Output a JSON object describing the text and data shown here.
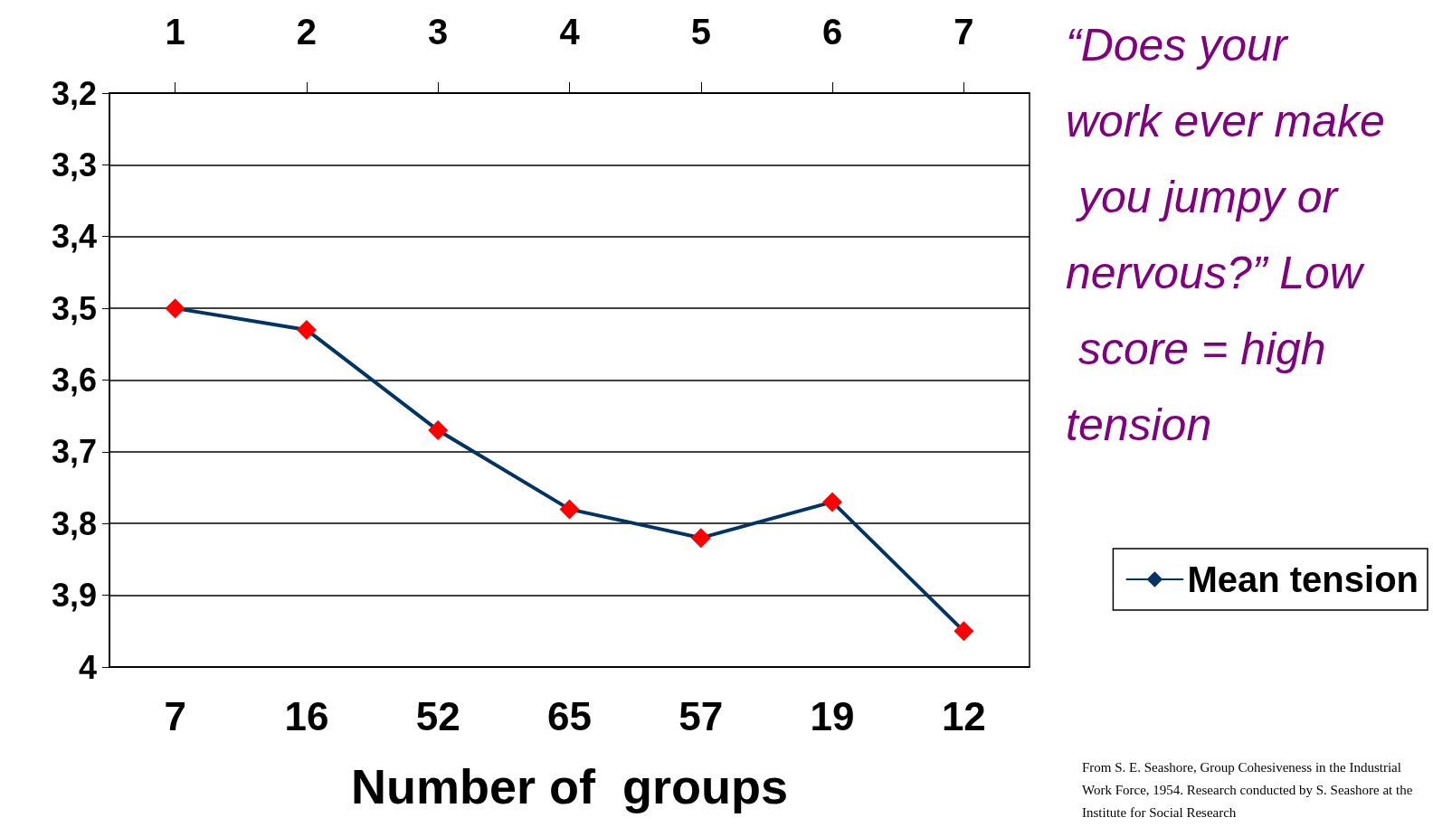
{
  "chart_data": {
    "type": "line",
    "categories": [
      "7",
      "16",
      "52",
      "65",
      "57",
      "19",
      "12"
    ],
    "xlabel": "Number of  groups",
    "x2lim": [
      0.5,
      7.5
    ],
    "x2ticks": [
      1,
      2,
      3,
      4,
      5,
      6,
      7
    ],
    "ylim": [
      4,
      3.2
    ],
    "yticks": [
      {
        "value": 3.2,
        "label": "3,2"
      },
      {
        "value": 3.3,
        "label": "3,3"
      },
      {
        "value": 3.4,
        "label": "3,4"
      },
      {
        "value": 3.5,
        "label": "3,5"
      },
      {
        "value": 3.6,
        "label": "3,6"
      },
      {
        "value": 3.7,
        "label": "3,7"
      },
      {
        "value": 3.8,
        "label": "3,8"
      },
      {
        "value": 3.9,
        "label": "3,9"
      },
      4
    ],
    "series": [
      {
        "name": "Mean tension",
        "color": "#003366",
        "colors": [
          "#ff0000",
          "#ff0000",
          "#ff0000",
          "#ff0000",
          "#ff0000",
          "#ff0000",
          "#ff0000"
        ],
        "values": [
          3.5,
          3.53,
          3.67,
          3.78,
          3.82,
          3.77,
          3.95
        ]
      }
    ],
    "marker": "diamond",
    "line_style": "solid",
    "grid": "y",
    "legend": "right",
    "annotations": [
      "“Does your work ever make you jumpy or nervous?” Low score = high tension",
      "From S. E. Seashore, Group Cohesiveness in the Industrial Work Force, 1954. Research conducted by S. Seashore at the Institute for Social Research"
    ]
  }
}
